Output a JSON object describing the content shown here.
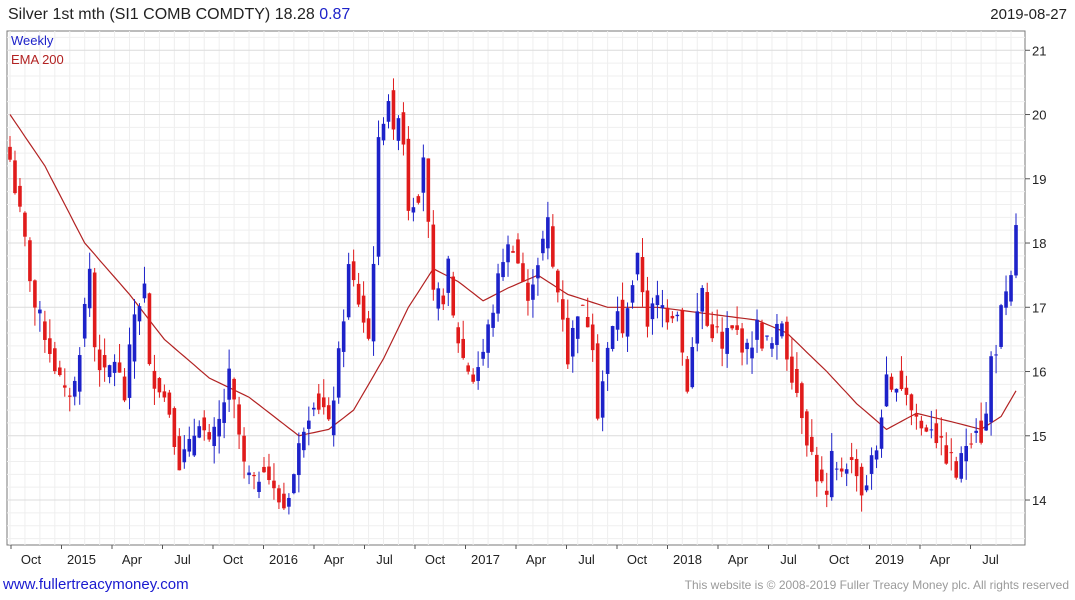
{
  "header": {
    "title": "Silver 1st mth (SI1 COMB COMDTY) 18.28",
    "change": "0.87",
    "date": "2019-08-27"
  },
  "footer": {
    "link": "www.fullertreacymoney.com",
    "copyright": "This website is © 2008-2019 Fuller Treacy Money plc. All rights reserved"
  },
  "colors": {
    "up": "#1d22c9",
    "down": "#e01b1b",
    "ema": "#b22222",
    "grid": "#dcdcdc"
  },
  "chart_data": {
    "type": "candlestick",
    "title": "Silver 1st mth (SI1 COMB COMDTY)",
    "legend": [
      "Weekly",
      "EMA 200"
    ],
    "legend_placement": "top-left",
    "grid": true,
    "y_axis_side": "right",
    "ylim": [
      13.3,
      21.3
    ],
    "y_ticks": [
      14,
      15,
      16,
      17,
      18,
      19,
      20,
      21
    ],
    "x_ticks": [
      "Oct",
      "2015",
      "Apr",
      "Jul",
      "Oct",
      "2016",
      "Apr",
      "Jul",
      "Oct",
      "2017",
      "Apr",
      "Jul",
      "Oct",
      "2018",
      "Apr",
      "Jul",
      "Oct",
      "2019",
      "Apr",
      "Jul"
    ],
    "close_anchors": [
      [
        0,
        19.3
      ],
      [
        3,
        18.0
      ],
      [
        5,
        17.0
      ],
      [
        7,
        16.6
      ],
      [
        9,
        16.1
      ],
      [
        11,
        15.6
      ],
      [
        13,
        15.8
      ],
      [
        15,
        17.0
      ],
      [
        16,
        17.6
      ],
      [
        17,
        16.4
      ],
      [
        19,
        15.9
      ],
      [
        21,
        16.2
      ],
      [
        23,
        15.6
      ],
      [
        25,
        16.9
      ],
      [
        27,
        17.3
      ],
      [
        28,
        16.0
      ],
      [
        30,
        15.8
      ],
      [
        32,
        15.4
      ],
      [
        34,
        14.6
      ],
      [
        36,
        14.8
      ],
      [
        38,
        15.3
      ],
      [
        40,
        14.8
      ],
      [
        42,
        15.2
      ],
      [
        44,
        15.9
      ],
      [
        46,
        15.0
      ],
      [
        47,
        14.5
      ],
      [
        49,
        14.2
      ],
      [
        51,
        14.6
      ],
      [
        53,
        14.1
      ],
      [
        55,
        13.9
      ],
      [
        57,
        14.4
      ],
      [
        59,
        15.2
      ],
      [
        61,
        15.6
      ],
      [
        63,
        15.4
      ],
      [
        64,
        15.1
      ],
      [
        66,
        16.2
      ],
      [
        68,
        17.6
      ],
      [
        70,
        17.1
      ],
      [
        72,
        16.5
      ],
      [
        73,
        17.8
      ],
      [
        74,
        19.5
      ],
      [
        75,
        20.0
      ],
      [
        76,
        20.3
      ],
      [
        77,
        19.6
      ],
      [
        78,
        20.1
      ],
      [
        79,
        19.6
      ],
      [
        80,
        18.6
      ],
      [
        82,
        18.8
      ],
      [
        83,
        19.4
      ],
      [
        84,
        18.2
      ],
      [
        85,
        17.1
      ],
      [
        87,
        17.2
      ],
      [
        88,
        17.6
      ],
      [
        89,
        16.8
      ],
      [
        91,
        16.2
      ],
      [
        93,
        15.9
      ],
      [
        95,
        16.3
      ],
      [
        97,
        17.0
      ],
      [
        99,
        17.8
      ],
      [
        101,
        18.0
      ],
      [
        103,
        17.4
      ],
      [
        104,
        17.0
      ],
      [
        105,
        17.5
      ],
      [
        107,
        18.0
      ],
      [
        108,
        18.3
      ],
      [
        109,
        17.6
      ],
      [
        111,
        16.9
      ],
      [
        112,
        16.2
      ],
      [
        114,
        17.0
      ],
      [
        116,
        16.8
      ],
      [
        117,
        16.5
      ],
      [
        118,
        15.4
      ],
      [
        120,
        16.3
      ],
      [
        122,
        17.0
      ],
      [
        123,
        16.5
      ],
      [
        124,
        17.1
      ],
      [
        126,
        17.7
      ],
      [
        127,
        17.3
      ],
      [
        128,
        16.8
      ],
      [
        130,
        17.1
      ],
      [
        132,
        16.9
      ],
      [
        134,
        17.0
      ],
      [
        135,
        16.3
      ],
      [
        136,
        15.8
      ],
      [
        138,
        16.9
      ],
      [
        139,
        17.3
      ],
      [
        140,
        16.7
      ],
      [
        142,
        16.6
      ],
      [
        143,
        16.3
      ],
      [
        144,
        16.6
      ],
      [
        146,
        16.6
      ],
      [
        148,
        16.3
      ],
      [
        150,
        16.7
      ],
      [
        151,
        16.5
      ],
      [
        153,
        16.4
      ],
      [
        155,
        16.8
      ],
      [
        156,
        16.3
      ],
      [
        158,
        15.7
      ],
      [
        159,
        15.4
      ],
      [
        160,
        15.0
      ],
      [
        161,
        14.7
      ],
      [
        162,
        14.4
      ],
      [
        163,
        14.2
      ],
      [
        164,
        14.0
      ],
      [
        165,
        14.6
      ],
      [
        166,
        14.4
      ],
      [
        168,
        14.6
      ],
      [
        170,
        14.5
      ],
      [
        171,
        14.1
      ],
      [
        172,
        14.3
      ],
      [
        173,
        14.6
      ],
      [
        174,
        14.8
      ],
      [
        175,
        15.4
      ],
      [
        176,
        15.8
      ],
      [
        177,
        15.6
      ],
      [
        178,
        15.9
      ],
      [
        180,
        15.7
      ],
      [
        181,
        15.4
      ],
      [
        182,
        15.3
      ],
      [
        183,
        15.1
      ],
      [
        185,
        15.2
      ],
      [
        187,
        14.8
      ],
      [
        189,
        14.6
      ],
      [
        190,
        14.4
      ],
      [
        191,
        14.6
      ],
      [
        192,
        14.9
      ],
      [
        194,
        15.2
      ],
      [
        195,
        15.0
      ],
      [
        196,
        15.3
      ],
      [
        197,
        16.2
      ],
      [
        198,
        16.4
      ],
      [
        199,
        16.9
      ],
      [
        200,
        17.1
      ],
      [
        201,
        17.4
      ],
      [
        202,
        18.28
      ]
    ],
    "ema_anchors": [
      [
        0,
        20.0
      ],
      [
        7,
        19.2
      ],
      [
        15,
        18.0
      ],
      [
        24,
        17.2
      ],
      [
        31,
        16.5
      ],
      [
        40,
        15.9
      ],
      [
        48,
        15.6
      ],
      [
        58,
        15.0
      ],
      [
        64,
        15.1
      ],
      [
        69,
        15.4
      ],
      [
        75,
        16.2
      ],
      [
        80,
        17.0
      ],
      [
        85,
        17.6
      ],
      [
        90,
        17.4
      ],
      [
        95,
        17.1
      ],
      [
        100,
        17.3
      ],
      [
        106,
        17.5
      ],
      [
        112,
        17.2
      ],
      [
        120,
        17.0
      ],
      [
        130,
        17.0
      ],
      [
        140,
        16.9
      ],
      [
        150,
        16.8
      ],
      [
        156,
        16.6
      ],
      [
        164,
        16.0
      ],
      [
        170,
        15.5
      ],
      [
        176,
        15.1
      ],
      [
        182,
        15.35
      ],
      [
        190,
        15.2
      ],
      [
        195,
        15.1
      ],
      [
        199,
        15.3
      ],
      [
        202,
        15.7
      ]
    ]
  }
}
